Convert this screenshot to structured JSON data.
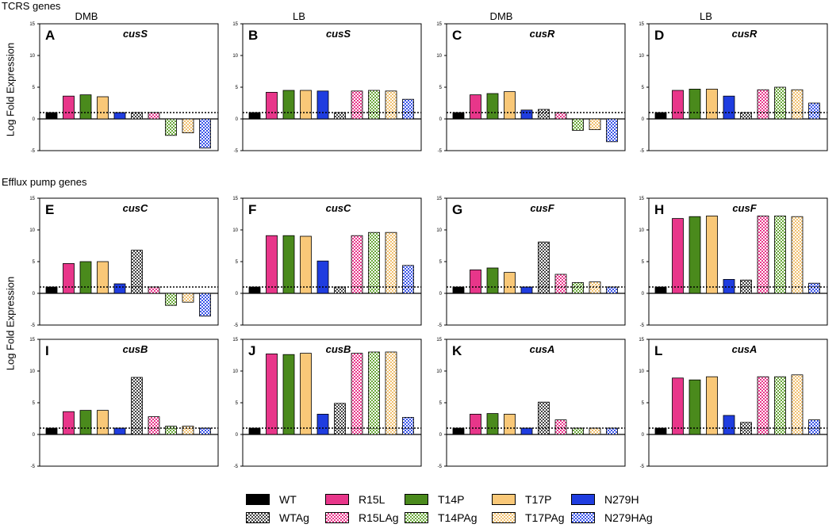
{
  "sections": {
    "tcrs": "TCRS genes",
    "efflux": "Efflux pump genes"
  },
  "y_label": "Log Fold Expression",
  "columns": [
    "DMB",
    "LB",
    "DMB",
    "LB"
  ],
  "strains": [
    {
      "key": "WT",
      "label": "WT",
      "color": "#000000",
      "pattern": "solid"
    },
    {
      "key": "R15L",
      "label": "R15L",
      "color": "#e8368a",
      "pattern": "solid"
    },
    {
      "key": "T14P",
      "label": "T14P",
      "color": "#4a8a1c",
      "pattern": "solid"
    },
    {
      "key": "T17P",
      "label": "T17P",
      "color": "#f9c878",
      "pattern": "solid"
    },
    {
      "key": "N279H",
      "label": "N279H",
      "color": "#1f3de0",
      "pattern": "solid"
    },
    {
      "key": "WTAg",
      "label": "WTAg",
      "color": "#444444",
      "pattern": "check"
    },
    {
      "key": "R15LAg",
      "label": "R15LAg",
      "color": "#e8368a",
      "pattern": "check"
    },
    {
      "key": "T14PAg",
      "label": "T14PAg",
      "color": "#6aa83a",
      "pattern": "check"
    },
    {
      "key": "T17PAg",
      "label": "T17PAg",
      "color": "#f0c070",
      "pattern": "check"
    },
    {
      "key": "N279HAg",
      "label": "N279HAg",
      "color": "#3a55e8",
      "pattern": "check"
    }
  ],
  "chart_data": [
    {
      "type": "bar",
      "panel": "A",
      "gene": "cusS",
      "medium": "DMB",
      "ylim": [
        -5,
        15
      ],
      "yticks": [
        -5,
        0,
        5,
        10,
        15
      ],
      "threshold": 1,
      "categories": [
        "WT",
        "R15L",
        "T14P",
        "T17P",
        "N279H",
        "WTAg",
        "R15LAg",
        "T14PAg",
        "T17PAg",
        "N279HAg"
      ],
      "values": [
        1,
        3.6,
        3.8,
        3.5,
        1,
        1,
        1,
        -2.6,
        -2.2,
        -4.6
      ]
    },
    {
      "type": "bar",
      "panel": "B",
      "gene": "cusS",
      "medium": "LB",
      "ylim": [
        -5,
        15
      ],
      "yticks": [
        -5,
        0,
        5,
        10,
        15
      ],
      "threshold": 1,
      "categories": [
        "WT",
        "R15L",
        "T14P",
        "T17P",
        "N279H",
        "WTAg",
        "R15LAg",
        "T14PAg",
        "T17PAg",
        "N279HAg"
      ],
      "values": [
        1,
        4.2,
        4.5,
        4.5,
        4.4,
        1,
        4.4,
        4.5,
        4.4,
        3.1
      ]
    },
    {
      "type": "bar",
      "panel": "C",
      "gene": "cusR",
      "medium": "DMB",
      "ylim": [
        -5,
        15
      ],
      "yticks": [
        -5,
        0,
        5,
        10,
        15
      ],
      "threshold": 1,
      "categories": [
        "WT",
        "R15L",
        "T14P",
        "T17P",
        "N279H",
        "WTAg",
        "R15LAg",
        "T14PAg",
        "T17PAg",
        "N279HAg"
      ],
      "values": [
        1,
        3.8,
        4,
        4.3,
        1.4,
        1.5,
        1,
        -1.8,
        -1.7,
        -3.6
      ]
    },
    {
      "type": "bar",
      "panel": "D",
      "gene": "cusR",
      "medium": "LB",
      "ylim": [
        -5,
        15
      ],
      "yticks": [
        -5,
        0,
        5,
        10,
        15
      ],
      "threshold": 1,
      "categories": [
        "WT",
        "R15L",
        "T14P",
        "T17P",
        "N279H",
        "WTAg",
        "R15LAg",
        "T14PAg",
        "T17PAg",
        "N279HAg"
      ],
      "values": [
        1,
        4.5,
        4.7,
        4.7,
        3.6,
        1,
        4.6,
        5,
        4.6,
        2.5
      ]
    },
    {
      "type": "bar",
      "panel": "E",
      "gene": "cusC",
      "medium": "DMB",
      "ylim": [
        -5,
        15
      ],
      "yticks": [
        -5,
        0,
        5,
        10,
        15
      ],
      "threshold": 1,
      "categories": [
        "WT",
        "R15L",
        "T14P",
        "T17P",
        "N279H",
        "WTAg",
        "R15LAg",
        "T14PAg",
        "T17PAg",
        "N279HAg"
      ],
      "values": [
        1,
        4.7,
        5,
        5,
        1.5,
        6.8,
        1,
        -1.9,
        -1.4,
        -3.6
      ]
    },
    {
      "type": "bar",
      "panel": "F",
      "gene": "cusC",
      "medium": "LB",
      "ylim": [
        -5,
        15
      ],
      "yticks": [
        -5,
        0,
        5,
        10,
        15
      ],
      "threshold": 1,
      "categories": [
        "WT",
        "R15L",
        "T14P",
        "T17P",
        "N279H",
        "WTAg",
        "R15LAg",
        "T14PAg",
        "T17PAg",
        "N279HAg"
      ],
      "values": [
        1,
        9.1,
        9.1,
        9,
        5.1,
        1,
        9.1,
        9.6,
        9.6,
        4.4
      ]
    },
    {
      "type": "bar",
      "panel": "G",
      "gene": "cusF",
      "medium": "DMB",
      "ylim": [
        -5,
        15
      ],
      "yticks": [
        -5,
        0,
        5,
        10,
        15
      ],
      "threshold": 1,
      "categories": [
        "WT",
        "R15L",
        "T14P",
        "T17P",
        "N279H",
        "WTAg",
        "R15LAg",
        "T14PAg",
        "T17PAg",
        "N279HAg"
      ],
      "values": [
        1,
        3.7,
        4,
        3.3,
        1,
        8.1,
        3,
        1.7,
        1.8,
        1
      ]
    },
    {
      "type": "bar",
      "panel": "H",
      "gene": "cusF",
      "medium": "LB",
      "ylim": [
        -5,
        15
      ],
      "yticks": [
        -5,
        0,
        5,
        10,
        15
      ],
      "threshold": 1,
      "categories": [
        "WT",
        "R15L",
        "T14P",
        "T17P",
        "N279H",
        "WTAg",
        "R15LAg",
        "T14PAg",
        "T17PAg",
        "N279HAg"
      ],
      "values": [
        1,
        11.8,
        12.1,
        12.2,
        2.2,
        2.1,
        12.2,
        12.2,
        12.1,
        1.6
      ]
    },
    {
      "type": "bar",
      "panel": "I",
      "gene": "cusB",
      "medium": "DMB",
      "ylim": [
        -5,
        15
      ],
      "yticks": [
        -5,
        0,
        5,
        10,
        15
      ],
      "threshold": 1,
      "categories": [
        "WT",
        "R15L",
        "T14P",
        "T17P",
        "N279H",
        "WTAg",
        "R15LAg",
        "T14PAg",
        "T17PAg",
        "N279HAg"
      ],
      "values": [
        1,
        3.6,
        3.8,
        3.8,
        1,
        9,
        2.8,
        1.3,
        1.3,
        1
      ]
    },
    {
      "type": "bar",
      "panel": "J",
      "gene": "cusB",
      "medium": "LB",
      "ylim": [
        -5,
        15
      ],
      "yticks": [
        -5,
        0,
        5,
        10,
        15
      ],
      "threshold": 1,
      "categories": [
        "WT",
        "R15L",
        "T14P",
        "T17P",
        "N279H",
        "WTAg",
        "R15LAg",
        "T14PAg",
        "T17PAg",
        "N279HAg"
      ],
      "values": [
        1,
        12.7,
        12.6,
        12.8,
        3.2,
        4.9,
        12.8,
        13,
        13,
        2.7
      ]
    },
    {
      "type": "bar",
      "panel": "K",
      "gene": "cusA",
      "medium": "DMB",
      "ylim": [
        -5,
        15
      ],
      "yticks": [
        -5,
        0,
        5,
        10,
        15
      ],
      "threshold": 1,
      "categories": [
        "WT",
        "R15L",
        "T14P",
        "T17P",
        "N279H",
        "WTAg",
        "R15LAg",
        "T14PAg",
        "T17PAg",
        "N279HAg"
      ],
      "values": [
        1,
        3.2,
        3.3,
        3.2,
        1,
        5.1,
        2.3,
        1,
        1,
        1
      ]
    },
    {
      "type": "bar",
      "panel": "L",
      "gene": "cusA",
      "medium": "LB",
      "ylim": [
        -5,
        15
      ],
      "yticks": [
        -5,
        0,
        5,
        10,
        15
      ],
      "threshold": 1,
      "categories": [
        "WT",
        "R15L",
        "T14P",
        "T17P",
        "N279H",
        "WTAg",
        "R15LAg",
        "T14PAg",
        "T17PAg",
        "N279HAg"
      ],
      "values": [
        1,
        8.9,
        8.6,
        9.1,
        3,
        1.9,
        9.1,
        9.1,
        9.4,
        2.3
      ]
    }
  ]
}
